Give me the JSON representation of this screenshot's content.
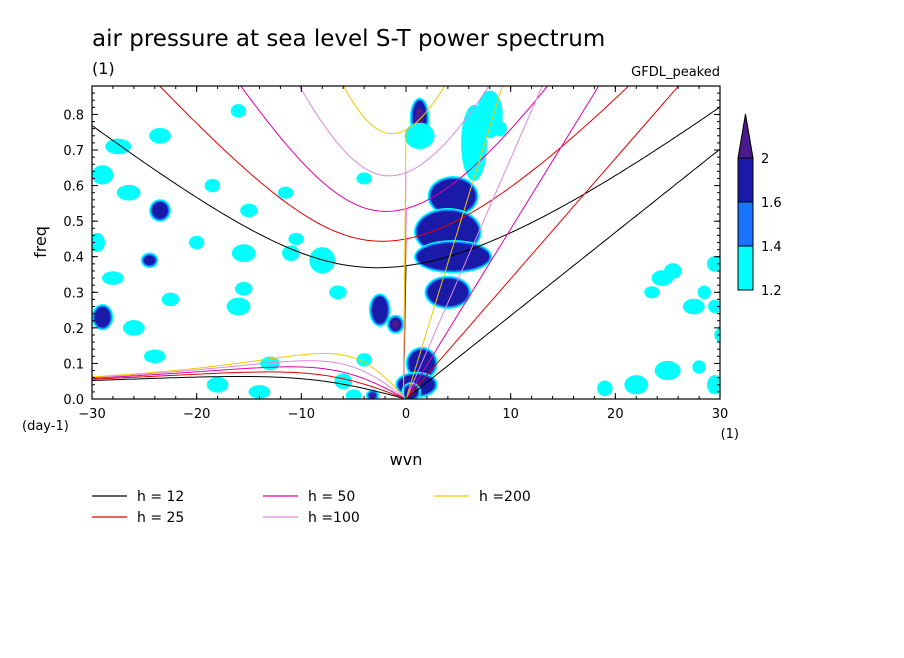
{
  "chart_data": {
    "type": "contour",
    "title": "air pressure at sea level S-T power spectrum",
    "subtitle": "(1)",
    "model_label": "GFDL_peaked",
    "xlabel": "wvn",
    "ylabel": "freq",
    "x_unit_label": "(1)",
    "y_unit_label": "(day-1)",
    "xlim": [
      -30,
      30
    ],
    "ylim": [
      0,
      0.88
    ],
    "xticks": [
      -30,
      -20,
      -10,
      0,
      10,
      20,
      30
    ],
    "yticks": [
      0.0,
      0.1,
      0.2,
      0.3,
      0.4,
      0.5,
      0.6,
      0.7,
      0.8
    ],
    "xtick_labels": [
      "-30",
      "-20",
      "-10",
      "0",
      "10",
      "20",
      "30"
    ],
    "ytick_labels": [
      "0.0",
      "0.1",
      "0.2",
      "0.3",
      "0.4",
      "0.5",
      "0.6",
      "0.7",
      "0.8"
    ],
    "colorbar": {
      "levels": [
        "1.2",
        "1.4",
        "1.6",
        "2"
      ],
      "colors": [
        "#00ffff",
        "#1874ff",
        "#1a1aa8",
        "#4a1a8c"
      ]
    },
    "series": [
      {
        "name": "h = 12",
        "h": 12,
        "color": "#000000"
      },
      {
        "name": "h = 25",
        "h": 25,
        "color": "#e00000"
      },
      {
        "name": "h = 50",
        "h": 50,
        "color": "#dd00aa"
      },
      {
        "name": "h =100",
        "h": 100,
        "color": "#dd88dd"
      },
      {
        "name": "h =200",
        "h": 200,
        "color": "#f0c800"
      }
    ],
    "blobs": [
      {
        "x": 1.3,
        "y": 0.79,
        "rx": 0.7,
        "ry": 0.05,
        "level": 3
      },
      {
        "x": 1.3,
        "y": 0.74,
        "rx": 1.2,
        "ry": 0.03,
        "level": 1
      },
      {
        "x": 4.5,
        "y": 0.57,
        "rx": 2.2,
        "ry": 0.05,
        "level": 2
      },
      {
        "x": 4.0,
        "y": 0.47,
        "rx": 3.0,
        "ry": 0.06,
        "level": 2
      },
      {
        "x": 4.5,
        "y": 0.4,
        "rx": 3.5,
        "ry": 0.04,
        "level": 2
      },
      {
        "x": 4.0,
        "y": 0.3,
        "rx": 2.0,
        "ry": 0.04,
        "level": 2
      },
      {
        "x": 6.5,
        "y": 0.72,
        "rx": 1.0,
        "ry": 0.1,
        "level": 1
      },
      {
        "x": 8.0,
        "y": 0.8,
        "rx": 1.0,
        "ry": 0.06,
        "level": 1
      },
      {
        "x": -2.5,
        "y": 0.25,
        "rx": 0.8,
        "ry": 0.04,
        "level": 2
      },
      {
        "x": -1.0,
        "y": 0.21,
        "rx": 0.6,
        "ry": 0.02,
        "level": 3
      },
      {
        "x": 1.5,
        "y": 0.1,
        "rx": 1.3,
        "ry": 0.04,
        "level": 2
      },
      {
        "x": 1.0,
        "y": 0.04,
        "rx": 1.8,
        "ry": 0.03,
        "level": 2
      },
      {
        "x": 0.5,
        "y": 0.02,
        "rx": 0.7,
        "ry": 0.02,
        "level": 3
      },
      {
        "x": -29.0,
        "y": 0.23,
        "rx": 0.8,
        "ry": 0.03,
        "level": 2
      },
      {
        "x": -24.5,
        "y": 0.39,
        "rx": 0.6,
        "ry": 0.015,
        "level": 2
      },
      {
        "x": -23.5,
        "y": 0.53,
        "rx": 0.8,
        "ry": 0.025,
        "level": 2
      },
      {
        "x": -27.5,
        "y": 0.71,
        "rx": 1.0,
        "ry": 0.015,
        "level": 1
      },
      {
        "x": -29.0,
        "y": 0.63,
        "rx": 0.8,
        "ry": 0.02,
        "level": 1
      },
      {
        "x": -29.5,
        "y": 0.44,
        "rx": 0.5,
        "ry": 0.02,
        "level": 1
      },
      {
        "x": -26.5,
        "y": 0.58,
        "rx": 0.9,
        "ry": 0.015,
        "level": 1
      },
      {
        "x": -23.5,
        "y": 0.74,
        "rx": 0.8,
        "ry": 0.015,
        "level": 1
      },
      {
        "x": -28.0,
        "y": 0.34,
        "rx": 0.8,
        "ry": 0.012,
        "level": 1
      },
      {
        "x": -26.0,
        "y": 0.2,
        "rx": 0.8,
        "ry": 0.015,
        "level": 1
      },
      {
        "x": -24.0,
        "y": 0.12,
        "rx": 0.8,
        "ry": 0.012,
        "level": 1
      },
      {
        "x": -22.5,
        "y": 0.28,
        "rx": 0.6,
        "ry": 0.012,
        "level": 1
      },
      {
        "x": -20.0,
        "y": 0.44,
        "rx": 0.5,
        "ry": 0.012,
        "level": 1
      },
      {
        "x": -18.5,
        "y": 0.6,
        "rx": 0.5,
        "ry": 0.012,
        "level": 1
      },
      {
        "x": -18.0,
        "y": 0.04,
        "rx": 0.8,
        "ry": 0.015,
        "level": 1
      },
      {
        "x": -16.0,
        "y": 0.26,
        "rx": 0.9,
        "ry": 0.018,
        "level": 1
      },
      {
        "x": -15.5,
        "y": 0.41,
        "rx": 0.9,
        "ry": 0.018,
        "level": 1
      },
      {
        "x": -14.0,
        "y": 0.02,
        "rx": 0.8,
        "ry": 0.012,
        "level": 1
      },
      {
        "x": -13.0,
        "y": 0.1,
        "rx": 0.7,
        "ry": 0.012,
        "level": 1
      },
      {
        "x": -11.0,
        "y": 0.41,
        "rx": 0.6,
        "ry": 0.015,
        "level": 1
      },
      {
        "x": -10.5,
        "y": 0.45,
        "rx": 0.5,
        "ry": 0.01,
        "level": 1
      },
      {
        "x": -15.5,
        "y": 0.31,
        "rx": 0.6,
        "ry": 0.012,
        "level": 1
      },
      {
        "x": -15.0,
        "y": 0.53,
        "rx": 0.6,
        "ry": 0.012,
        "level": 1
      },
      {
        "x": -16.0,
        "y": 0.81,
        "rx": 0.5,
        "ry": 0.012,
        "level": 1
      },
      {
        "x": -11.5,
        "y": 0.58,
        "rx": 0.5,
        "ry": 0.01,
        "level": 1
      },
      {
        "x": -8.0,
        "y": 0.39,
        "rx": 1.0,
        "ry": 0.03,
        "level": 1
      },
      {
        "x": -6.5,
        "y": 0.3,
        "rx": 0.6,
        "ry": 0.012,
        "level": 1
      },
      {
        "x": -6.0,
        "y": 0.05,
        "rx": 0.6,
        "ry": 0.015,
        "level": 1
      },
      {
        "x": -5.0,
        "y": 0.01,
        "rx": 0.5,
        "ry": 0.01,
        "level": 1
      },
      {
        "x": -4.0,
        "y": 0.11,
        "rx": 0.5,
        "ry": 0.012,
        "level": 1
      },
      {
        "x": -4.0,
        "y": 0.62,
        "rx": 0.5,
        "ry": 0.01,
        "level": 1
      },
      {
        "x": -3.2,
        "y": 0.01,
        "rx": 0.4,
        "ry": 0.01,
        "level": 3
      },
      {
        "x": 9.0,
        "y": 0.76,
        "rx": 0.4,
        "ry": 0.015,
        "level": 1
      },
      {
        "x": 24.5,
        "y": 0.34,
        "rx": 0.8,
        "ry": 0.015,
        "level": 1
      },
      {
        "x": 25.5,
        "y": 0.36,
        "rx": 0.6,
        "ry": 0.015,
        "level": 1
      },
      {
        "x": 23.5,
        "y": 0.3,
        "rx": 0.5,
        "ry": 0.01,
        "level": 1
      },
      {
        "x": 27.5,
        "y": 0.26,
        "rx": 0.8,
        "ry": 0.015,
        "level": 1
      },
      {
        "x": 29.5,
        "y": 0.38,
        "rx": 0.5,
        "ry": 0.015,
        "level": 1
      },
      {
        "x": 28.5,
        "y": 0.3,
        "rx": 0.4,
        "ry": 0.012,
        "level": 1
      },
      {
        "x": 25.0,
        "y": 0.08,
        "rx": 1.0,
        "ry": 0.02,
        "level": 1
      },
      {
        "x": 29.5,
        "y": 0.04,
        "rx": 0.5,
        "ry": 0.02,
        "level": 1
      },
      {
        "x": 28.0,
        "y": 0.09,
        "rx": 0.4,
        "ry": 0.012,
        "level": 1
      },
      {
        "x": 22.0,
        "y": 0.04,
        "rx": 0.9,
        "ry": 0.02,
        "level": 1
      },
      {
        "x": 19.0,
        "y": 0.03,
        "rx": 0.5,
        "ry": 0.015,
        "level": 1
      },
      {
        "x": 29.5,
        "y": 0.26,
        "rx": 0.4,
        "ry": 0.012,
        "level": 1
      },
      {
        "x": 30.0,
        "y": 0.18,
        "rx": 0.3,
        "ry": 0.012,
        "level": 1
      }
    ]
  }
}
